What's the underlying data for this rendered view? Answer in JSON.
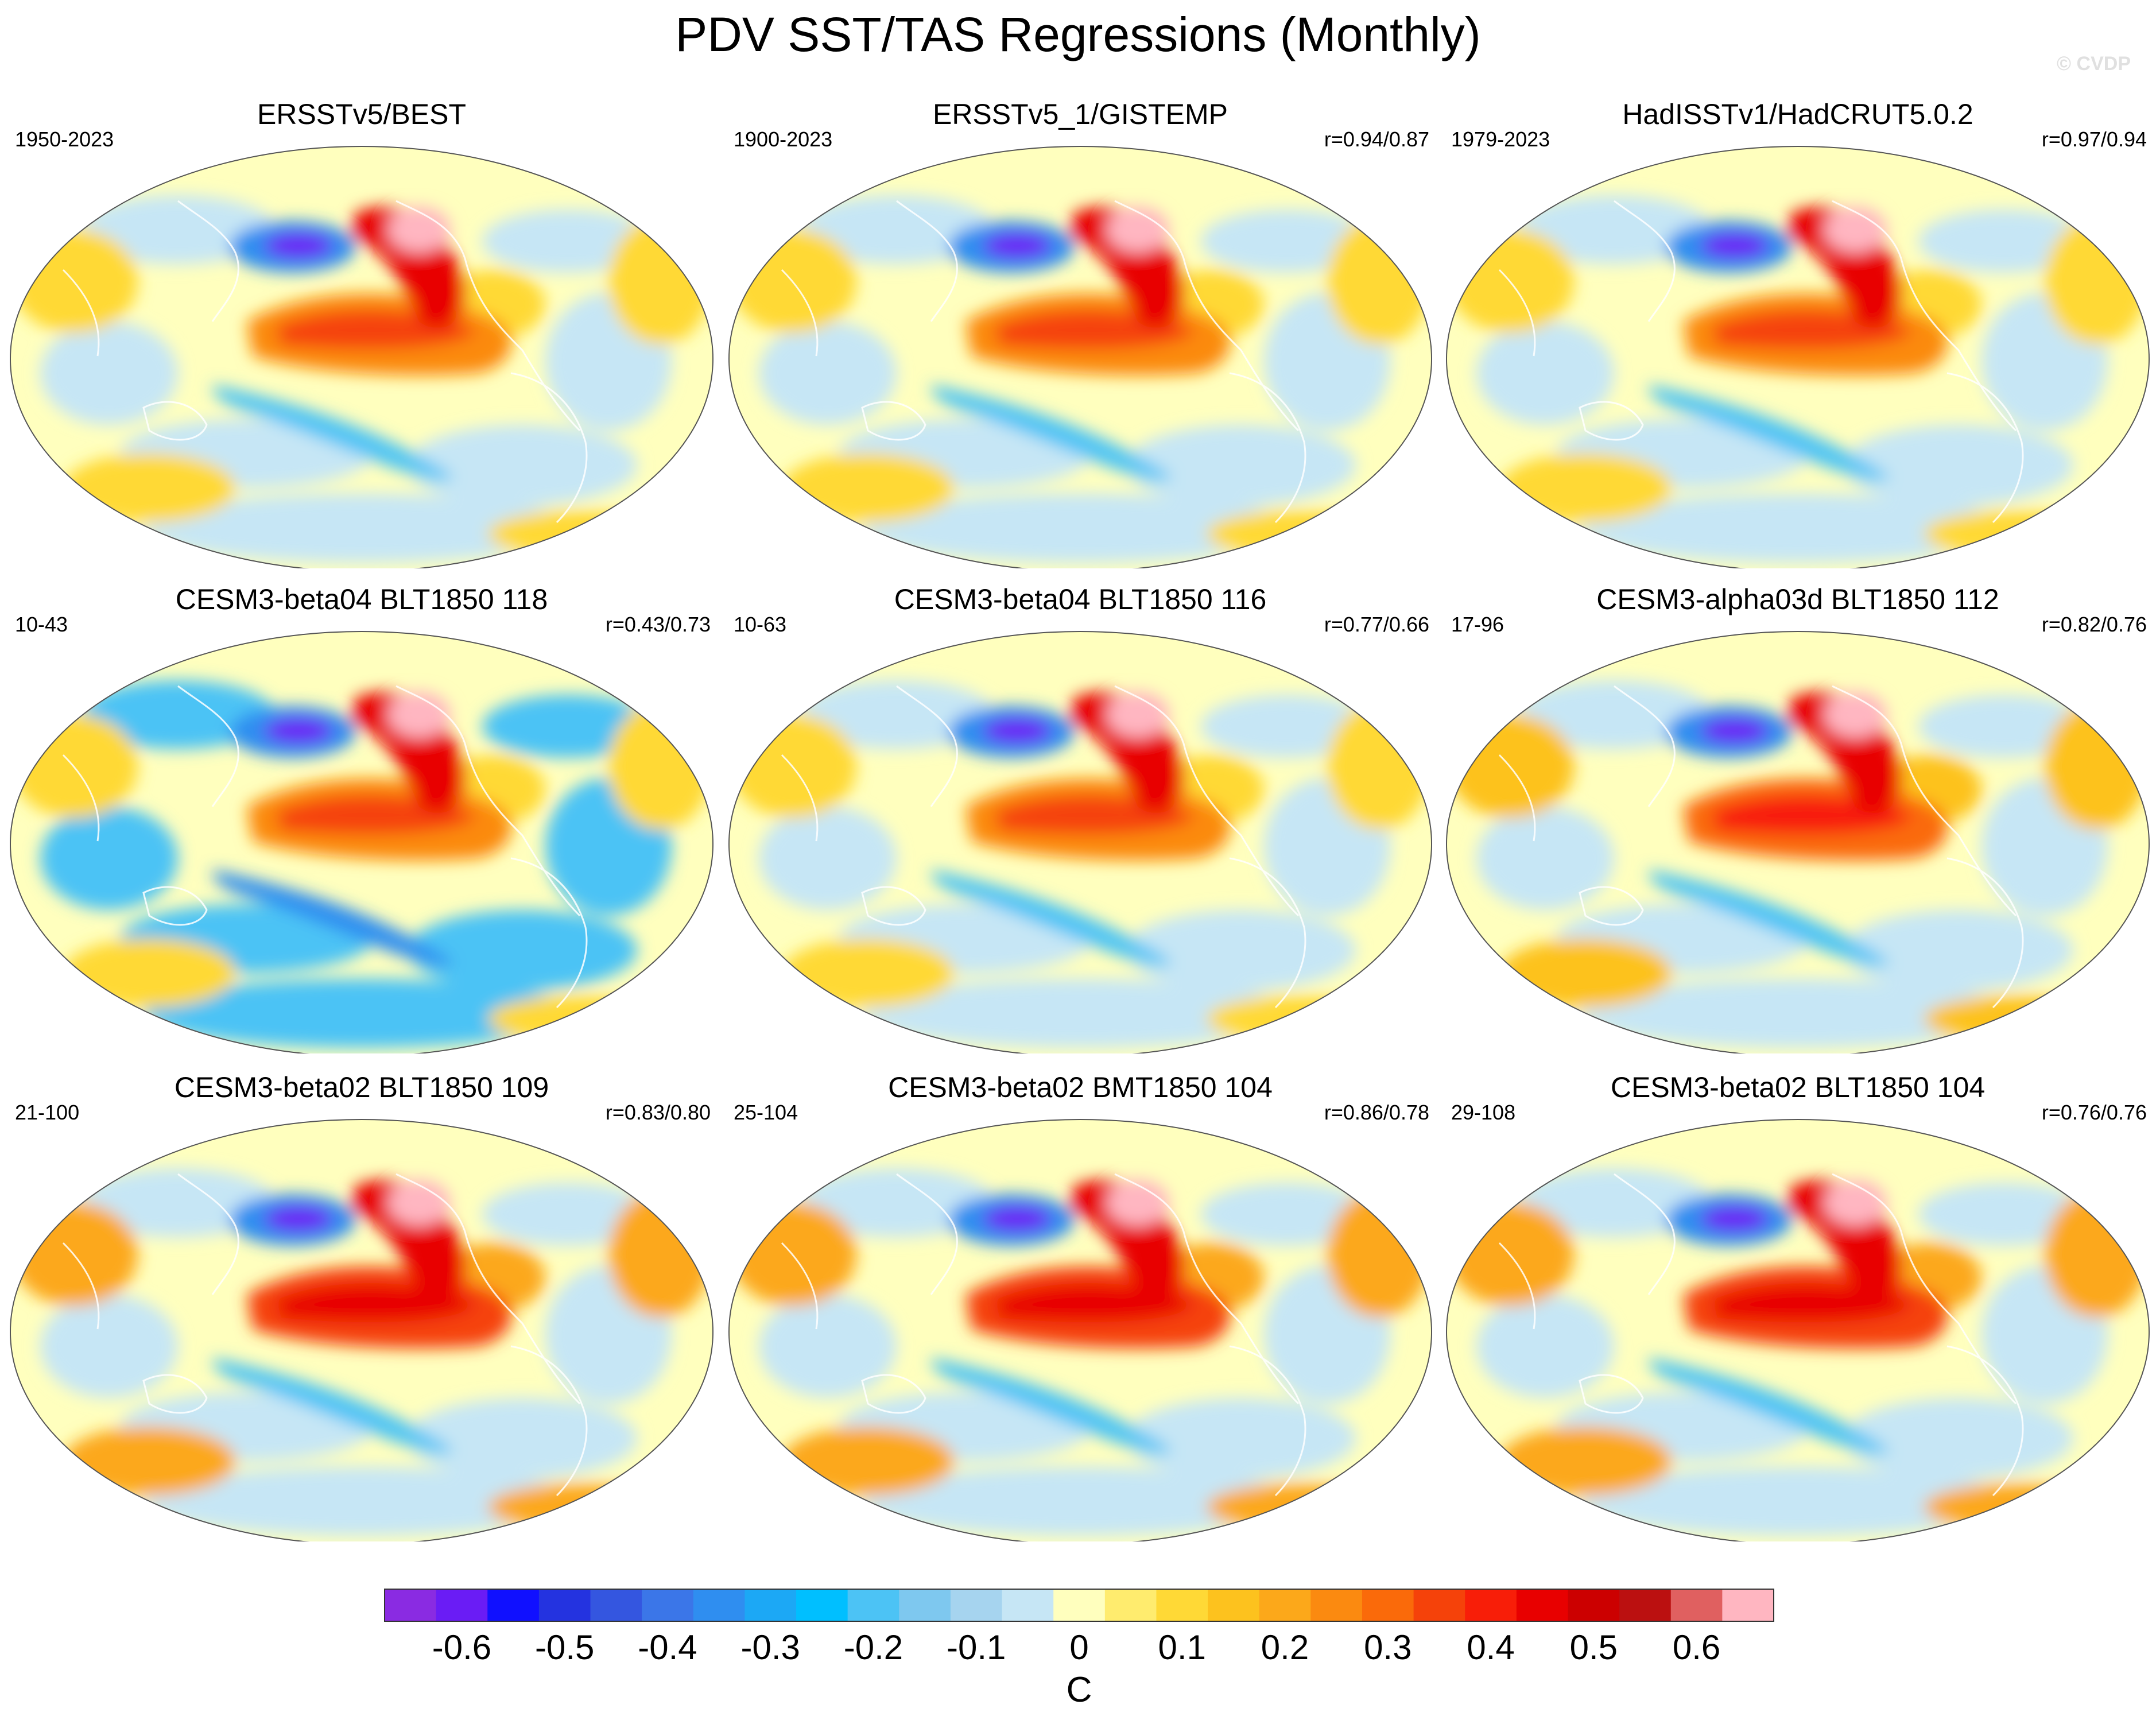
{
  "figure": {
    "title": "PDV SST/TAS Regressions (Monthly)",
    "copyright": "© CVDP"
  },
  "panels": [
    {
      "title": "ERSSTv5/BEST",
      "years": "1950-2023",
      "correlation": ""
    },
    {
      "title": "ERSSTv5_1/GISTEMP",
      "years": "1900-2023",
      "correlation": "r=0.94/0.87"
    },
    {
      "title": "HadISSTv1/HadCRUT5.0.2",
      "years": "1979-2023",
      "correlation": "r=0.97/0.94"
    },
    {
      "title": "CESM3-beta04 BLT1850 118",
      "years": "10-43",
      "correlation": "r=0.43/0.73"
    },
    {
      "title": "CESM3-beta04 BLT1850 116",
      "years": "10-63",
      "correlation": "r=0.77/0.66"
    },
    {
      "title": "CESM3-alpha03d BLT1850 112",
      "years": "17-96",
      "correlation": "r=0.82/0.76"
    },
    {
      "title": "CESM3-beta02 BLT1850 109",
      "years": "21-100",
      "correlation": "r=0.83/0.80"
    },
    {
      "title": "CESM3-beta02 BMT1850 104",
      "years": "25-104",
      "correlation": "r=0.86/0.78"
    },
    {
      "title": "CESM3-beta02 BLT1850 104",
      "years": "29-108",
      "correlation": "r=0.76/0.76"
    }
  ],
  "colorbar": {
    "unit": "C",
    "tick_labels": [
      "-0.6",
      "-0.5",
      "-0.4",
      "-0.3",
      "-0.2",
      "-0.1",
      "0",
      "0.1",
      "0.2",
      "0.3",
      "0.4",
      "0.5",
      "0.6"
    ],
    "colors": [
      "#8a2be2",
      "#6a1cf5",
      "#1010ff",
      "#2433e0",
      "#3456e0",
      "#3b76e8",
      "#2f8ef0",
      "#1ca8f5",
      "#00bfff",
      "#4cc3f5",
      "#7ec8ef",
      "#a6d4ef",
      "#c6e6f5",
      "#ffffbe",
      "#ffec6e",
      "#ffd936",
      "#fdc21e",
      "#fca81a",
      "#fb8a10",
      "#fa6a0a",
      "#f5420a",
      "#f81e08",
      "#e80000",
      "#cc0000",
      "#bb1010",
      "#e06060",
      "#ffb6c1"
    ]
  }
}
